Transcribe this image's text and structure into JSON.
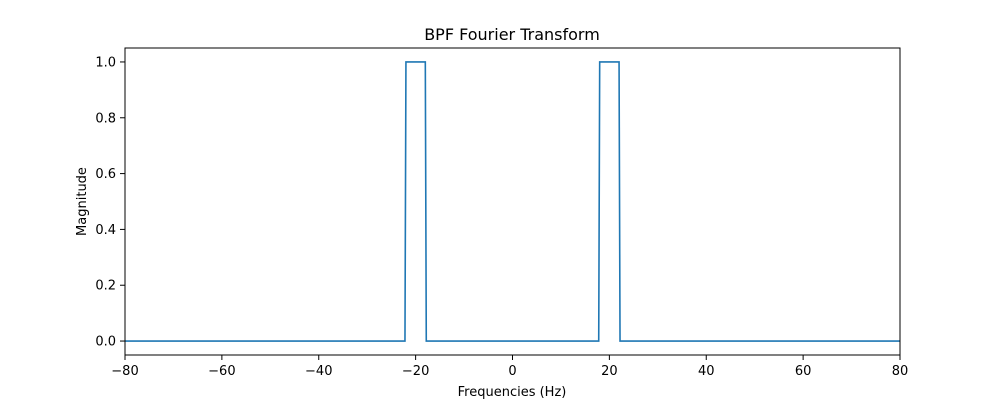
{
  "chart_data": {
    "type": "line",
    "title": "BPF Fourier Transform",
    "xlabel": "Frequencies (Hz)",
    "ylabel": "Magnitude",
    "xlim": [
      -80,
      80
    ],
    "ylim": [
      -0.05,
      1.05
    ],
    "xticks": [
      -80,
      -60,
      -40,
      -20,
      0,
      20,
      40,
      60,
      80
    ],
    "xtick_labels": [
      "−80",
      "−60",
      "−40",
      "−20",
      "0",
      "20",
      "40",
      "60",
      "80"
    ],
    "yticks": [
      0.0,
      0.2,
      0.4,
      0.6,
      0.8,
      1.0
    ],
    "ytick_labels": [
      "0.0",
      "0.2",
      "0.4",
      "0.6",
      "0.8",
      "1.0"
    ],
    "grid": false,
    "series": [
      {
        "color": "#1f77b4",
        "x": [
          -80,
          -22.2,
          -22,
          -18,
          -17.8,
          17.8,
          18,
          22,
          22.2,
          80
        ],
        "y": [
          0,
          0,
          1,
          1,
          0,
          0,
          1,
          1,
          0,
          0
        ]
      }
    ]
  }
}
